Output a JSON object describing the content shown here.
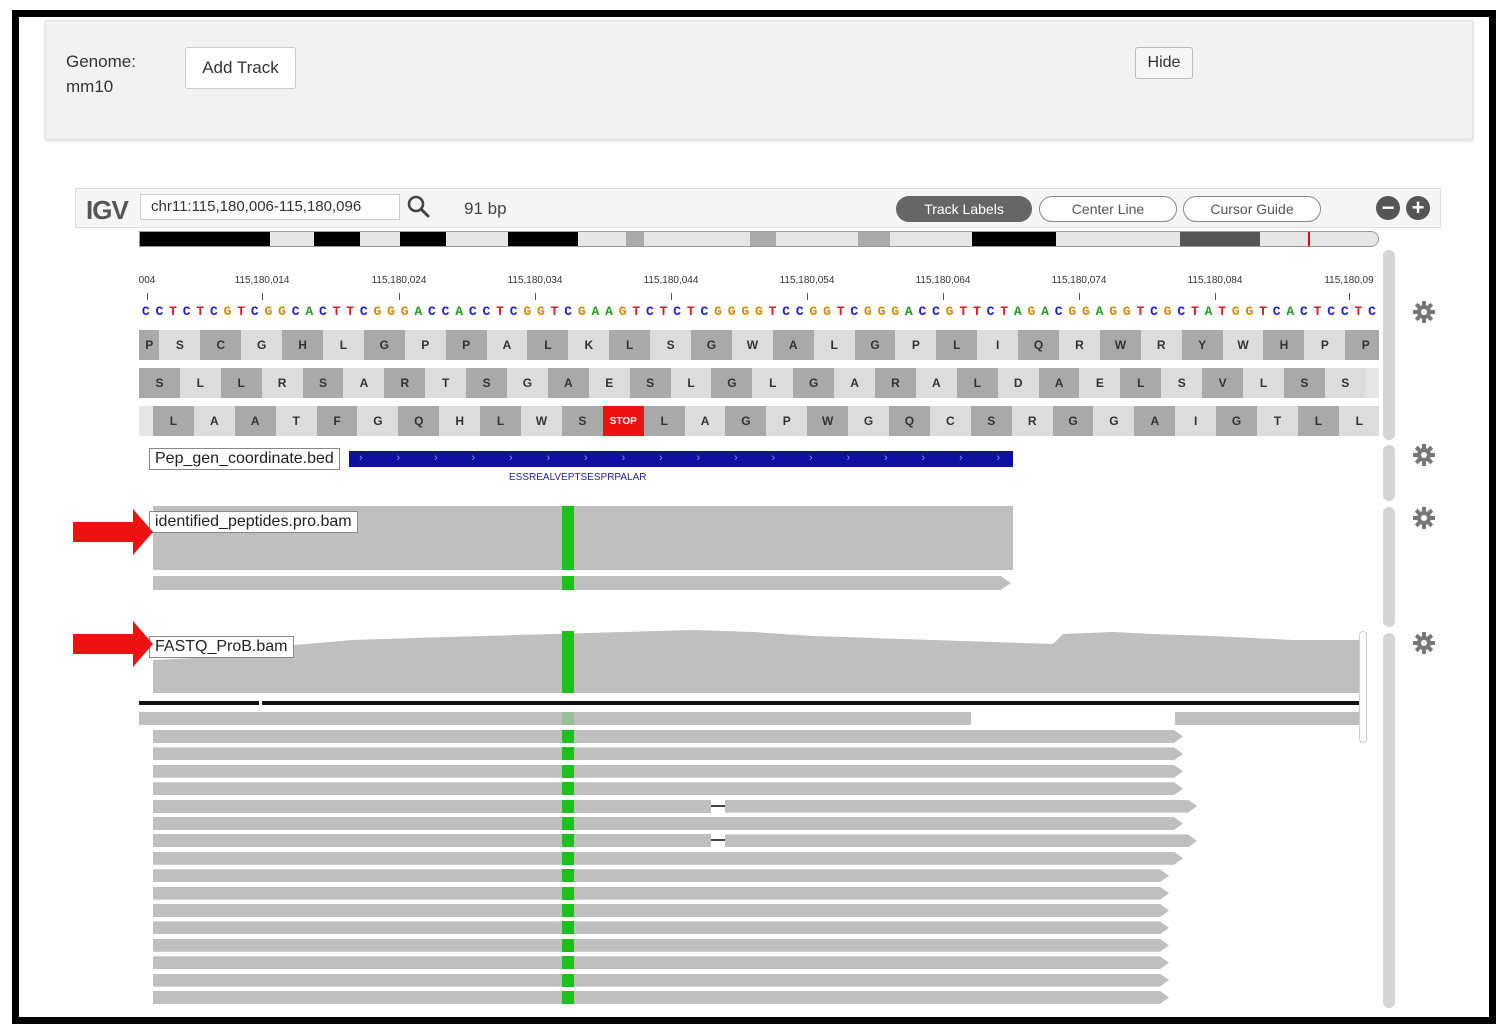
{
  "header": {
    "genome_label": "Genome:",
    "genome_value": "mm10",
    "add_track_label": "Add Track",
    "hide_label": "Hide"
  },
  "igv": {
    "logo": "IGV",
    "locus": "chr11:115,180,006-115,180,096",
    "bp_width": "91 bp",
    "track_labels_button": "Track Labels",
    "center_line_button": "Center Line",
    "cursor_guide_button": "Cursor Guide",
    "zoom_out_icon": "minus-circle-icon",
    "zoom_in_icon": "plus-circle-icon"
  },
  "ruler": {
    "ticks": [
      "004",
      "115,180,014",
      "115,180,024",
      "115,180,034",
      "115,180,044",
      "115,180,054",
      "115,180,064",
      "115,180,074",
      "115,180,084",
      "115,180,09"
    ]
  },
  "sequence": "CCTCTCGTCGGCACTTCGGGACCACCTCGGTCGAAGTCTCTCGGGGTCCGGTCGGGACCGTTCTAGACGGAGGTCGCTATGGTCACTCCTC",
  "colors": {
    "A": "#1f9d1f",
    "C": "#2020d0",
    "G": "#d08a00",
    "T": "#d02020",
    "peptide_highlight": "#1bc21b",
    "bed_feature": "#1010a0",
    "stop_codon": "#e11111",
    "arrow": "#ee1111"
  },
  "translation_frames": [
    [
      "P",
      "S",
      "C",
      "G",
      "H",
      "L",
      "G",
      "P",
      "P",
      "A",
      "L",
      "K",
      "L",
      "S",
      "G",
      "W",
      "A",
      "L",
      "G",
      "P",
      "L",
      "I",
      "Q",
      "R",
      "W",
      "R",
      "Y",
      "W",
      "H",
      "P",
      "P"
    ],
    [
      "S",
      "L",
      "L",
      "R",
      "S",
      "A",
      "R",
      "T",
      "S",
      "G",
      "A",
      "E",
      "S",
      "L",
      "G",
      "L",
      "G",
      "A",
      "R",
      "A",
      "L",
      "D",
      "A",
      "E",
      "L",
      "S",
      "V",
      "L",
      "S",
      "S"
    ],
    [
      "L",
      "A",
      "A",
      "T",
      "F",
      "G",
      "Q",
      "H",
      "L",
      "W",
      "S",
      "STOP",
      "L",
      "A",
      "G",
      "P",
      "W",
      "G",
      "Q",
      "C",
      "S",
      "R",
      "G",
      "G",
      "A",
      "I",
      "G",
      "T",
      "L",
      "L"
    ]
  ],
  "tracks": {
    "bed_name": "Pep_gen_coordinate.bed",
    "bed_feature_label": "ESSREALVEPTSESPRPALAR",
    "peptide_bam_name": "identified_peptides.pro.bam",
    "fastq_bam_name": "FASTQ_ProB.bam"
  },
  "icons": {
    "gear": "gear-icon",
    "search": "search-icon",
    "arrow": "red-arrow-icon"
  }
}
